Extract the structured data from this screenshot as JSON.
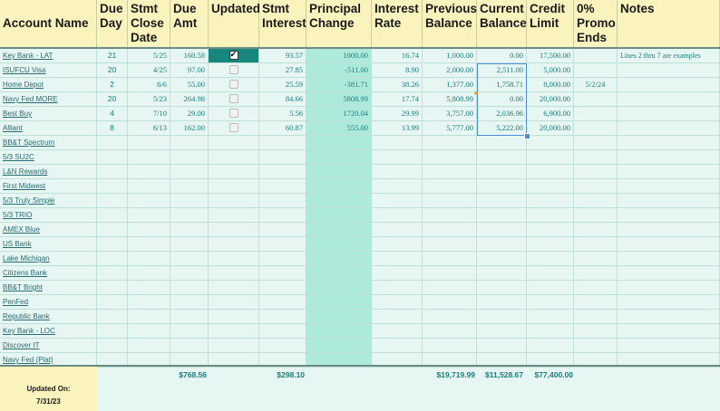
{
  "columns": [
    {
      "label": "Account Name"
    },
    {
      "label": "Due Day"
    },
    {
      "label": "Stmt Close Date"
    },
    {
      "label": "Due Amt"
    },
    {
      "label": "Updated"
    },
    {
      "label": "Stmt Interest"
    },
    {
      "label": "Principal Change"
    },
    {
      "label": "Interest Rate"
    },
    {
      "label": "Previous Balance"
    },
    {
      "label": "Current Balance"
    },
    {
      "label": "Credit Limit"
    },
    {
      "label": "0% Promo Ends"
    },
    {
      "label": "Notes"
    }
  ],
  "rows": [
    {
      "name": "Key Bank - LAT",
      "due_day": "21",
      "close": "5/25",
      "due_amt": "160.58",
      "updated": true,
      "stmt_int": "93.57",
      "principal": "1000.00",
      "rate": "16.74",
      "prev": "1,000.00",
      "curr": "0.00",
      "limit": "17,500.00",
      "promo": "",
      "notes": "Lines 2 thru 7 are examples"
    },
    {
      "name": "ISUFCU Visa",
      "due_day": "20",
      "close": "4/25",
      "due_amt": "97.00",
      "updated": false,
      "stmt_int": "27.85",
      "principal": "-511.00",
      "rate": "8.90",
      "prev": "2,000.00",
      "curr": "2,511.00",
      "limit": "5,000.00",
      "promo": "",
      "notes": ""
    },
    {
      "name": "Home Depot",
      "due_day": "2",
      "close": "6/6",
      "due_amt": "55.00",
      "updated": false,
      "stmt_int": "25.59",
      "principal": "-381.71",
      "rate": "38.26",
      "prev": "1,377.00",
      "curr": "1,758.71",
      "limit": "8,000.00",
      "promo": "5/2/24",
      "notes": ""
    },
    {
      "name": "Navy Fed MORE",
      "due_day": "20",
      "close": "5/23",
      "due_amt": "264.98",
      "updated": false,
      "stmt_int": "84.66",
      "principal": "5808.99",
      "rate": "17.74",
      "prev": "5,808.99",
      "curr": "0.00",
      "limit": "20,000.00",
      "promo": "",
      "notes": ""
    },
    {
      "name": "Best Buy",
      "due_day": "4",
      "close": "7/10",
      "due_amt": "29.00",
      "updated": false,
      "stmt_int": "5.56",
      "principal": "1720.04",
      "rate": "29.99",
      "prev": "3,757.00",
      "curr": "2,036.96",
      "limit": "6,900.00",
      "promo": "",
      "notes": ""
    },
    {
      "name": "Alliant",
      "due_day": "8",
      "close": "6/13",
      "due_amt": "162.00",
      "updated": false,
      "stmt_int": "60.87",
      "principal": "555.00",
      "rate": "13.99",
      "prev": "5,777.00",
      "curr": "5,222.00",
      "limit": "20,000.00",
      "promo": "",
      "notes": ""
    },
    {
      "name": "BB&T Spectrum"
    },
    {
      "name": "5/3 SU2C"
    },
    {
      "name": "L&N Rewards"
    },
    {
      "name": "First Midwest"
    },
    {
      "name": "5/3 Truly Simple"
    },
    {
      "name": "5/3 TRIO"
    },
    {
      "name": "AMEX Blue"
    },
    {
      "name": "US Bank"
    },
    {
      "name": "Lake Michigan"
    },
    {
      "name": "Citizens Bank"
    },
    {
      "name": "BB&T Bright"
    },
    {
      "name": "PenFed"
    },
    {
      "name": "Republic Bank"
    },
    {
      "name": "Key Bank - LOC"
    },
    {
      "name": "Discover IT"
    },
    {
      "name": "Navy Fed (Plat)"
    }
  ],
  "totals": {
    "due_amt": "$768.56",
    "stmt_int": "$298.10",
    "prev": "$19,719.99",
    "curr": "$11,528.67",
    "limit": "$77,400.00"
  },
  "footer": {
    "updated_on_label": "Updated On:",
    "updated_on_date": "7/31/23"
  },
  "colors": {
    "header_bg": "#fbf3bd",
    "body_bg": "#e6f6f2",
    "principal_bg": "#aeeadb",
    "text_teal": "#1f7a7a",
    "checked_cell": "#17877e"
  }
}
